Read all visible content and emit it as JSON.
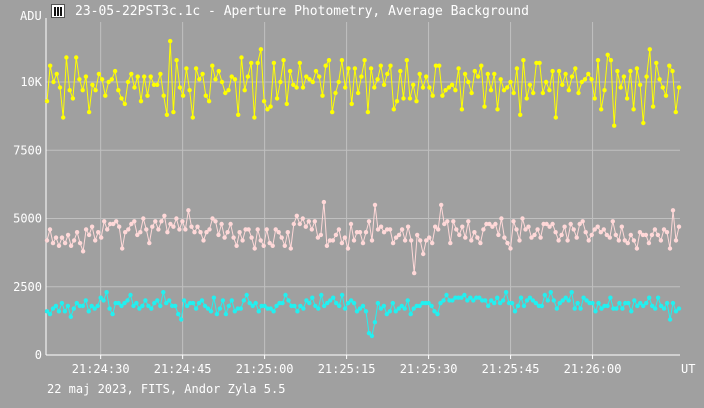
{
  "window": {
    "title": "23-05-22PST3c.1c - Aperture Photometry, Average Background",
    "icon": "app-icon"
  },
  "footer": {
    "text": "22 maj 2023, FITS, Andor Zyla 5.5"
  },
  "colors": {
    "background": "#a0a0a0",
    "grid": "#c0c0c0",
    "text": "#ffffff",
    "series_yellow": "#ffff00",
    "series_pink": "#ffd8d8",
    "series_cyan": "#22f0f0"
  },
  "chart_data": {
    "type": "line",
    "ylabel": "ADU",
    "xlabel": "UT",
    "ylim": [
      0,
      12200
    ],
    "y_ticks": [
      {
        "value": 0,
        "label": "0"
      },
      {
        "value": 2500,
        "label": "2500"
      },
      {
        "value": 5000,
        "label": "5000"
      },
      {
        "value": 7500,
        "label": "7500"
      },
      {
        "value": 10000,
        "label": "10K"
      }
    ],
    "x_start": "21:24:20",
    "x_end": "21:26:16",
    "x_ticks": [
      "21:24:30",
      "21:24:45",
      "21:25:00",
      "21:25:15",
      "21:25:30",
      "21:25:45",
      "21:26:00"
    ],
    "grid": true,
    "series": [
      {
        "color": "#ffff00",
        "values": [
          9300,
          10600,
          10000,
          10300,
          9800,
          8700,
          10900,
          9700,
          9400,
          10900,
          10100,
          9700,
          10200,
          8900,
          9900,
          9700,
          10300,
          10100,
          9500,
          10000,
          10100,
          10400,
          9700,
          9400,
          9200,
          10000,
          10300,
          9800,
          10200,
          9300,
          10200,
          9500,
          10200,
          9900,
          9900,
          10300,
          9500,
          8800,
          11500,
          8900,
          10800,
          9800,
          9500,
          10500,
          9700,
          8700,
          10500,
          10100,
          10300,
          9500,
          9300,
          10600,
          10100,
          10400,
          10000,
          9600,
          9700,
          10200,
          10100,
          8800,
          10900,
          9700,
          10200,
          10700,
          8700,
          10700,
          11200,
          9300,
          9000,
          9100,
          10700,
          9400,
          10000,
          10800,
          9200,
          10400,
          9900,
          9800,
          10700,
          9800,
          10200,
          10100,
          10000,
          10400,
          10200,
          9500,
          10600,
          10800,
          8900,
          9600,
          10000,
          10800,
          9800,
          10500,
          9200,
          10500,
          9600,
          10200,
          10800,
          8900,
          10500,
          9800,
          10100,
          10600,
          9900,
          10300,
          10600,
          9000,
          9300,
          10400,
          9400,
          10800,
          9400,
          9900,
          9300,
          10300,
          9800,
          10200,
          9800,
          9500,
          10600,
          10600,
          9500,
          9700,
          9800,
          9900,
          9700,
          10500,
          9000,
          10300,
          10000,
          9600,
          10400,
          10200,
          10600,
          9100,
          10300,
          9700,
          10300,
          9000,
          10100,
          9700,
          9800,
          10000,
          9600,
          10500,
          8800,
          10800,
          9400,
          9900,
          9600,
          10700,
          10700,
          9600,
          10000,
          9700,
          10400,
          8700,
          10400,
          9900,
          10300,
          9700,
          10200,
          10500,
          9600,
          10000,
          10100,
          10300,
          10100,
          9400,
          10800,
          9000,
          9700,
          11000,
          10800,
          8400,
          10400,
          9800,
          10200,
          9400,
          10400,
          9000,
          10500,
          9900,
          8500,
          10200,
          11200,
          9100,
          10700,
          10100,
          9800,
          9500,
          10600,
          10400,
          8900,
          9800
        ]
      },
      {
        "color": "#ffd8d8",
        "values": [
          4200,
          4600,
          4100,
          4300,
          4000,
          4300,
          4100,
          4400,
          4000,
          4200,
          4500,
          4100,
          3800,
          4600,
          4400,
          4700,
          4200,
          4500,
          4300,
          4900,
          4600,
          4800,
          4800,
          4900,
          4700,
          3900,
          4500,
          4600,
          4800,
          4900,
          4400,
          4500,
          5000,
          4600,
          4100,
          4700,
          4900,
          4600,
          4900,
          5100,
          4500,
          4800,
          4700,
          5000,
          4600,
          4900,
          4600,
          5300,
          4700,
          4500,
          4700,
          4500,
          4200,
          4500,
          4600,
          5000,
          4900,
          4400,
          4800,
          4300,
          4500,
          4800,
          4300,
          4000,
          4500,
          4200,
          4600,
          4600,
          4300,
          3900,
          4600,
          4200,
          4000,
          4600,
          4100,
          4000,
          4600,
          4500,
          4300,
          4000,
          4500,
          3900,
          4800,
          5100,
          4800,
          5000,
          4700,
          4900,
          4600,
          4900,
          4300,
          4400,
          5600,
          4000,
          4200,
          4200,
          4400,
          4600,
          4100,
          4300,
          3900,
          4800,
          4200,
          4500,
          4500,
          4100,
          4500,
          4900,
          4200,
          5500,
          4600,
          4700,
          4500,
          4600,
          4600,
          4100,
          4300,
          4400,
          4600,
          4200,
          4700,
          4200,
          3000,
          4400,
          4200,
          3700,
          4200,
          4300,
          4100,
          4700,
          4600,
          5500,
          4800,
          4900,
          4100,
          4900,
          4600,
          4400,
          4700,
          4300,
          4900,
          4200,
          4500,
          4300,
          4100,
          4600,
          4800,
          4800,
          4700,
          4800,
          4400,
          5000,
          4300,
          4100,
          3900,
          4900,
          4600,
          4200,
          5000,
          4600,
          4700,
          4300,
          4400,
          4600,
          4300,
          4800,
          4800,
          4700,
          4800,
          4500,
          4200,
          4400,
          4700,
          4200,
          4800,
          4600,
          4300,
          4800,
          4900,
          4500,
          4200,
          4400,
          4600,
          4700,
          4500,
          4600,
          4400,
          4300,
          4900,
          4400,
          4200,
          4700,
          4200,
          4100,
          4400,
          4200,
          3900,
          4500,
          4400,
          4400,
          4100,
          4400,
          4600,
          4400,
          4200,
          4600,
          4500,
          3900,
          5300,
          4200,
          4700
        ]
      },
      {
        "color": "#22f0f0",
        "values": [
          1600,
          1500,
          1700,
          1800,
          1600,
          1900,
          1600,
          1800,
          1400,
          1700,
          1900,
          1800,
          1800,
          2000,
          1600,
          1800,
          1700,
          1800,
          2100,
          2000,
          2300,
          1700,
          1500,
          1900,
          1900,
          1800,
          1900,
          2000,
          2200,
          1800,
          1900,
          1700,
          1800,
          2000,
          1800,
          1700,
          1900,
          2000,
          1800,
          2300,
          1900,
          2000,
          1800,
          1800,
          1500,
          1300,
          2000,
          1800,
          1900,
          1900,
          1700,
          1900,
          2000,
          1800,
          1700,
          1600,
          2100,
          1500,
          1700,
          2000,
          1500,
          1800,
          2000,
          1600,
          1700,
          1700,
          2000,
          2200,
          1900,
          1800,
          1900,
          1600,
          1800,
          1800,
          1700,
          1700,
          1600,
          1800,
          1900,
          1900,
          2200,
          2000,
          1800,
          1800,
          1600,
          1800,
          1700,
          2000,
          1900,
          2100,
          1800,
          1700,
          2200,
          1800,
          1900,
          2000,
          2100,
          1900,
          1800,
          2200,
          1700,
          1900,
          2000,
          1900,
          1600,
          1700,
          1800,
          1600,
          800,
          700,
          1200,
          1900,
          1700,
          1800,
          1500,
          1600,
          1900,
          1600,
          1700,
          1800,
          1700,
          2000,
          1500,
          1700,
          1800,
          1800,
          1900,
          1900,
          1900,
          1800,
          1600,
          1500,
          1900,
          2000,
          2200,
          2000,
          2000,
          2100,
          2100,
          2100,
          2200,
          2000,
          2100,
          2000,
          2100,
          2100,
          2000,
          2000,
          1800,
          2000,
          1900,
          2100,
          1900,
          2000,
          2300,
          1900,
          1900,
          1600,
          1800,
          2100,
          1800,
          2000,
          2100,
          2000,
          1900,
          1800,
          1800,
          2200,
          2000,
          2300,
          2000,
          1700,
          1900,
          2000,
          2100,
          2000,
          2300,
          1700,
          1900,
          1700,
          2100,
          2000,
          1900,
          1900,
          1600,
          1900,
          1700,
          1800,
          1800,
          2100,
          1700,
          1700,
          1900,
          1700,
          1900,
          1900,
          1600,
          2000,
          1800,
          1900,
          1800,
          1900,
          2100,
          1800,
          1700,
          2100,
          1800,
          1700,
          1900,
          1300,
          1900,
          1600,
          1700
        ]
      }
    ]
  }
}
